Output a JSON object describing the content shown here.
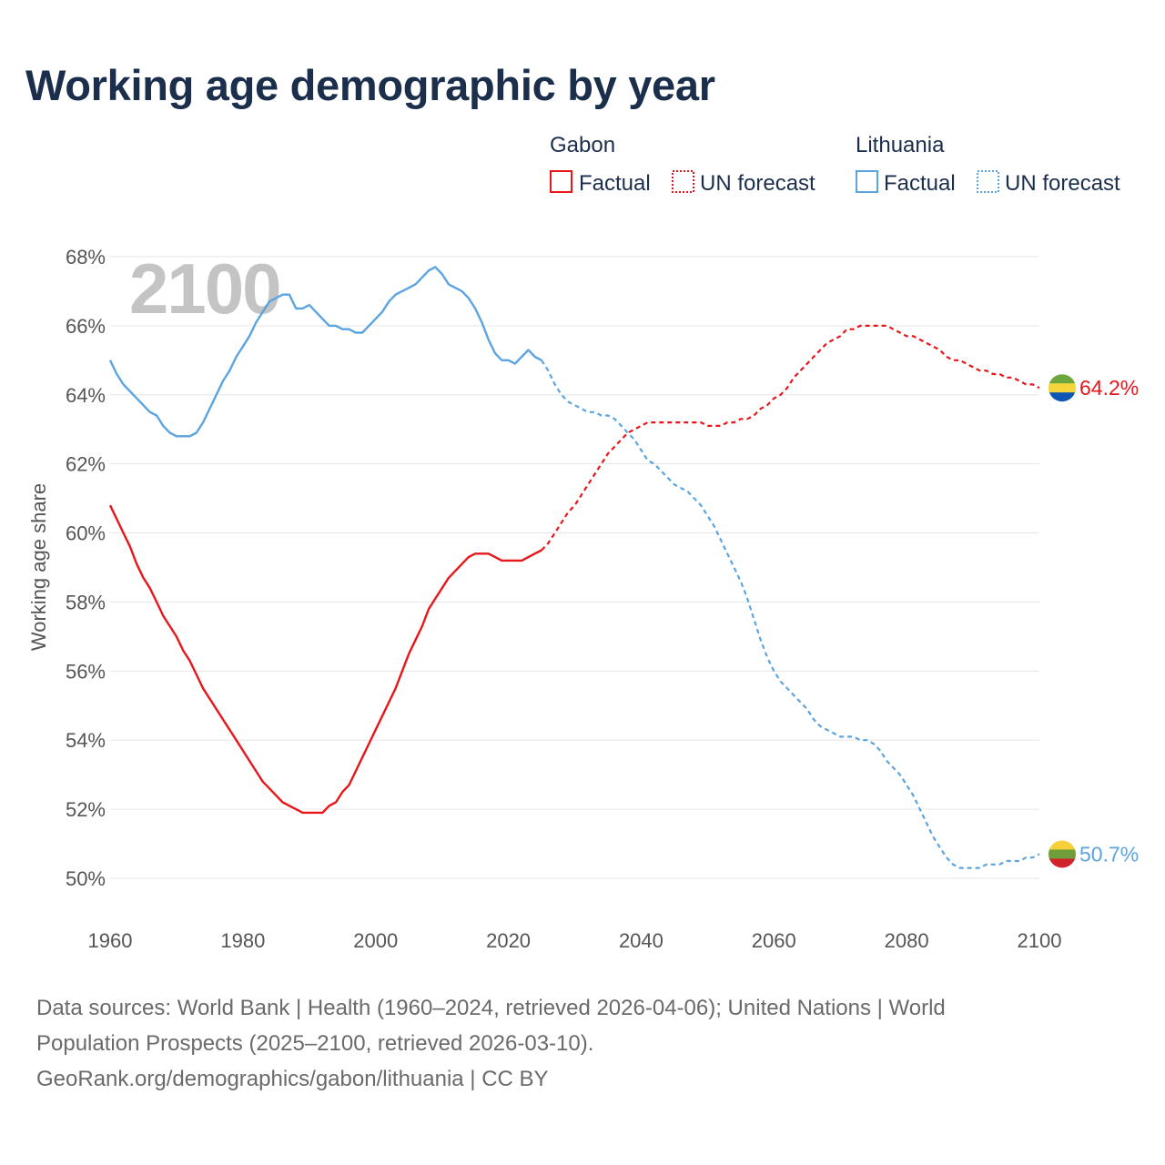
{
  "title": "Working age demographic by year",
  "colors": {
    "gabon": "#e8161b",
    "lithuania": "#5ba4e0",
    "title": "#1b2e4b",
    "grid": "#e6e6e6",
    "axis_text": "#555555",
    "year_watermark": "#c4c4c4"
  },
  "legend": {
    "groups": [
      {
        "country": "Gabon",
        "factual_label": "Factual",
        "forecast_label": "UN forecast"
      },
      {
        "country": "Lithuania",
        "factual_label": "Factual",
        "forecast_label": "UN forecast"
      }
    ]
  },
  "chart_data": {
    "type": "line",
    "title": "Working age demographic by year",
    "xlabel": "",
    "ylabel": "Working age share",
    "year_watermark": "2100",
    "xlim": [
      1960,
      2100
    ],
    "ylim": [
      50,
      68
    ],
    "x_ticks": [
      1960,
      1980,
      2000,
      2020,
      2040,
      2060,
      2080,
      2100
    ],
    "x_tick_labels": [
      "1960",
      "1980",
      "2000",
      "2020",
      "2040",
      "2060",
      "2080",
      "2100"
    ],
    "y_ticks": [
      50,
      52,
      54,
      56,
      58,
      60,
      62,
      64,
      66,
      68
    ],
    "y_tick_labels": [
      "50%",
      "52%",
      "54%",
      "56%",
      "58%",
      "60%",
      "62%",
      "64%",
      "66%",
      "68%"
    ],
    "factual_end_year": 2025,
    "series": [
      {
        "name": "Gabon",
        "color": "#e8161b",
        "end_label": "64.2%",
        "points": [
          [
            1960,
            60.8
          ],
          [
            1961,
            60.4
          ],
          [
            1962,
            60.0
          ],
          [
            1963,
            59.6
          ],
          [
            1964,
            59.1
          ],
          [
            1965,
            58.7
          ],
          [
            1966,
            58.4
          ],
          [
            1967,
            58.0
          ],
          [
            1968,
            57.6
          ],
          [
            1969,
            57.3
          ],
          [
            1970,
            57.0
          ],
          [
            1971,
            56.6
          ],
          [
            1972,
            56.3
          ],
          [
            1973,
            55.9
          ],
          [
            1974,
            55.5
          ],
          [
            1975,
            55.2
          ],
          [
            1976,
            54.9
          ],
          [
            1977,
            54.6
          ],
          [
            1978,
            54.3
          ],
          [
            1979,
            54.0
          ],
          [
            1980,
            53.7
          ],
          [
            1981,
            53.4
          ],
          [
            1982,
            53.1
          ],
          [
            1983,
            52.8
          ],
          [
            1984,
            52.6
          ],
          [
            1985,
            52.4
          ],
          [
            1986,
            52.2
          ],
          [
            1987,
            52.1
          ],
          [
            1988,
            52.0
          ],
          [
            1989,
            51.9
          ],
          [
            1990,
            51.9
          ],
          [
            1991,
            51.9
          ],
          [
            1992,
            51.9
          ],
          [
            1993,
            52.1
          ],
          [
            1994,
            52.2
          ],
          [
            1995,
            52.5
          ],
          [
            1996,
            52.7
          ],
          [
            1997,
            53.1
          ],
          [
            1998,
            53.5
          ],
          [
            1999,
            53.9
          ],
          [
            2000,
            54.3
          ],
          [
            2001,
            54.7
          ],
          [
            2002,
            55.1
          ],
          [
            2003,
            55.5
          ],
          [
            2004,
            56.0
          ],
          [
            2005,
            56.5
          ],
          [
            2006,
            56.9
          ],
          [
            2007,
            57.3
          ],
          [
            2008,
            57.8
          ],
          [
            2009,
            58.1
          ],
          [
            2010,
            58.4
          ],
          [
            2011,
            58.7
          ],
          [
            2012,
            58.9
          ],
          [
            2013,
            59.1
          ],
          [
            2014,
            59.3
          ],
          [
            2015,
            59.4
          ],
          [
            2016,
            59.4
          ],
          [
            2017,
            59.4
          ],
          [
            2018,
            59.3
          ],
          [
            2019,
            59.2
          ],
          [
            2020,
            59.2
          ],
          [
            2021,
            59.2
          ],
          [
            2022,
            59.2
          ],
          [
            2023,
            59.3
          ],
          [
            2024,
            59.4
          ],
          [
            2025,
            59.5
          ],
          [
            2026,
            59.7
          ],
          [
            2027,
            60.0
          ],
          [
            2028,
            60.3
          ],
          [
            2029,
            60.6
          ],
          [
            2030,
            60.8
          ],
          [
            2031,
            61.1
          ],
          [
            2032,
            61.4
          ],
          [
            2033,
            61.7
          ],
          [
            2034,
            62.0
          ],
          [
            2035,
            62.3
          ],
          [
            2036,
            62.5
          ],
          [
            2037,
            62.7
          ],
          [
            2038,
            62.9
          ],
          [
            2039,
            63.0
          ],
          [
            2040,
            63.1
          ],
          [
            2041,
            63.2
          ],
          [
            2042,
            63.2
          ],
          [
            2043,
            63.2
          ],
          [
            2044,
            63.2
          ],
          [
            2045,
            63.2
          ],
          [
            2046,
            63.2
          ],
          [
            2047,
            63.2
          ],
          [
            2048,
            63.2
          ],
          [
            2049,
            63.2
          ],
          [
            2050,
            63.1
          ],
          [
            2051,
            63.1
          ],
          [
            2052,
            63.1
          ],
          [
            2053,
            63.2
          ],
          [
            2054,
            63.2
          ],
          [
            2055,
            63.3
          ],
          [
            2056,
            63.3
          ],
          [
            2057,
            63.4
          ],
          [
            2058,
            63.6
          ],
          [
            2059,
            63.7
          ],
          [
            2060,
            63.9
          ],
          [
            2061,
            64.0
          ],
          [
            2062,
            64.2
          ],
          [
            2063,
            64.5
          ],
          [
            2064,
            64.7
          ],
          [
            2065,
            64.9
          ],
          [
            2066,
            65.1
          ],
          [
            2067,
            65.3
          ],
          [
            2068,
            65.5
          ],
          [
            2069,
            65.6
          ],
          [
            2070,
            65.7
          ],
          [
            2071,
            65.9
          ],
          [
            2072,
            65.9
          ],
          [
            2073,
            66.0
          ],
          [
            2074,
            66.0
          ],
          [
            2075,
            66.0
          ],
          [
            2076,
            66.0
          ],
          [
            2077,
            66.0
          ],
          [
            2078,
            65.9
          ],
          [
            2079,
            65.8
          ],
          [
            2080,
            65.7
          ],
          [
            2081,
            65.7
          ],
          [
            2082,
            65.6
          ],
          [
            2083,
            65.5
          ],
          [
            2084,
            65.4
          ],
          [
            2085,
            65.3
          ],
          [
            2086,
            65.1
          ],
          [
            2087,
            65.0
          ],
          [
            2088,
            65.0
          ],
          [
            2089,
            64.9
          ],
          [
            2090,
            64.8
          ],
          [
            2091,
            64.7
          ],
          [
            2092,
            64.7
          ],
          [
            2093,
            64.6
          ],
          [
            2094,
            64.6
          ],
          [
            2095,
            64.5
          ],
          [
            2096,
            64.5
          ],
          [
            2097,
            64.4
          ],
          [
            2098,
            64.3
          ],
          [
            2099,
            64.3
          ],
          [
            2100,
            64.2
          ]
        ]
      },
      {
        "name": "Lithuania",
        "color": "#5ba4e0",
        "end_label": "50.7%",
        "points": [
          [
            1960,
            65.0
          ],
          [
            1961,
            64.6
          ],
          [
            1962,
            64.3
          ],
          [
            1963,
            64.1
          ],
          [
            1964,
            63.9
          ],
          [
            1965,
            63.7
          ],
          [
            1966,
            63.5
          ],
          [
            1967,
            63.4
          ],
          [
            1968,
            63.1
          ],
          [
            1969,
            62.9
          ],
          [
            1970,
            62.8
          ],
          [
            1971,
            62.8
          ],
          [
            1972,
            62.8
          ],
          [
            1973,
            62.9
          ],
          [
            1974,
            63.2
          ],
          [
            1975,
            63.6
          ],
          [
            1976,
            64.0
          ],
          [
            1977,
            64.4
          ],
          [
            1978,
            64.7
          ],
          [
            1979,
            65.1
          ],
          [
            1980,
            65.4
          ],
          [
            1981,
            65.7
          ],
          [
            1982,
            66.1
          ],
          [
            1983,
            66.4
          ],
          [
            1984,
            66.7
          ],
          [
            1985,
            66.8
          ],
          [
            1986,
            66.9
          ],
          [
            1987,
            66.9
          ],
          [
            1988,
            66.5
          ],
          [
            1989,
            66.5
          ],
          [
            1990,
            66.6
          ],
          [
            1991,
            66.4
          ],
          [
            1992,
            66.2
          ],
          [
            1993,
            66.0
          ],
          [
            1994,
            66.0
          ],
          [
            1995,
            65.9
          ],
          [
            1996,
            65.9
          ],
          [
            1997,
            65.8
          ],
          [
            1998,
            65.8
          ],
          [
            1999,
            66.0
          ],
          [
            2000,
            66.2
          ],
          [
            2001,
            66.4
          ],
          [
            2002,
            66.7
          ],
          [
            2003,
            66.9
          ],
          [
            2004,
            67.0
          ],
          [
            2005,
            67.1
          ],
          [
            2006,
            67.2
          ],
          [
            2007,
            67.4
          ],
          [
            2008,
            67.6
          ],
          [
            2009,
            67.7
          ],
          [
            2010,
            67.5
          ],
          [
            2011,
            67.2
          ],
          [
            2012,
            67.1
          ],
          [
            2013,
            67.0
          ],
          [
            2014,
            66.8
          ],
          [
            2015,
            66.5
          ],
          [
            2016,
            66.1
          ],
          [
            2017,
            65.6
          ],
          [
            2018,
            65.2
          ],
          [
            2019,
            65.0
          ],
          [
            2020,
            65.0
          ],
          [
            2021,
            64.9
          ],
          [
            2022,
            65.1
          ],
          [
            2023,
            65.3
          ],
          [
            2024,
            65.1
          ],
          [
            2025,
            65.0
          ],
          [
            2026,
            64.7
          ],
          [
            2027,
            64.3
          ],
          [
            2028,
            64.0
          ],
          [
            2029,
            63.8
          ],
          [
            2030,
            63.7
          ],
          [
            2031,
            63.6
          ],
          [
            2032,
            63.5
          ],
          [
            2033,
            63.5
          ],
          [
            2034,
            63.4
          ],
          [
            2035,
            63.4
          ],
          [
            2036,
            63.3
          ],
          [
            2037,
            63.1
          ],
          [
            2038,
            62.9
          ],
          [
            2039,
            62.7
          ],
          [
            2040,
            62.4
          ],
          [
            2041,
            62.1
          ],
          [
            2042,
            62.0
          ],
          [
            2043,
            61.8
          ],
          [
            2044,
            61.6
          ],
          [
            2045,
            61.4
          ],
          [
            2046,
            61.3
          ],
          [
            2047,
            61.2
          ],
          [
            2048,
            61.0
          ],
          [
            2049,
            60.8
          ],
          [
            2050,
            60.5
          ],
          [
            2051,
            60.2
          ],
          [
            2052,
            59.8
          ],
          [
            2053,
            59.4
          ],
          [
            2054,
            59.0
          ],
          [
            2055,
            58.6
          ],
          [
            2056,
            58.1
          ],
          [
            2057,
            57.5
          ],
          [
            2058,
            56.9
          ],
          [
            2059,
            56.4
          ],
          [
            2060,
            56.0
          ],
          [
            2061,
            55.7
          ],
          [
            2062,
            55.5
          ],
          [
            2063,
            55.3
          ],
          [
            2064,
            55.1
          ],
          [
            2065,
            54.9
          ],
          [
            2066,
            54.6
          ],
          [
            2067,
            54.4
          ],
          [
            2068,
            54.3
          ],
          [
            2069,
            54.2
          ],
          [
            2070,
            54.1
          ],
          [
            2071,
            54.1
          ],
          [
            2072,
            54.1
          ],
          [
            2073,
            54.0
          ],
          [
            2074,
            54.0
          ],
          [
            2075,
            53.9
          ],
          [
            2076,
            53.7
          ],
          [
            2077,
            53.4
          ],
          [
            2078,
            53.2
          ],
          [
            2079,
            53.0
          ],
          [
            2080,
            52.7
          ],
          [
            2081,
            52.4
          ],
          [
            2082,
            52.0
          ],
          [
            2083,
            51.6
          ],
          [
            2084,
            51.2
          ],
          [
            2085,
            50.9
          ],
          [
            2086,
            50.6
          ],
          [
            2087,
            50.4
          ],
          [
            2088,
            50.3
          ],
          [
            2089,
            50.3
          ],
          [
            2090,
            50.3
          ],
          [
            2091,
            50.3
          ],
          [
            2092,
            50.4
          ],
          [
            2093,
            50.4
          ],
          [
            2094,
            50.4
          ],
          [
            2095,
            50.5
          ],
          [
            2096,
            50.5
          ],
          [
            2097,
            50.5
          ],
          [
            2098,
            50.6
          ],
          [
            2099,
            50.6
          ],
          [
            2100,
            50.7
          ]
        ]
      }
    ]
  },
  "footer": {
    "line1": "Data sources: World Bank | Health (1960–2024, retrieved 2026-04-06); United Nations | World",
    "line2": "Population Prospects (2025–2100, retrieved 2026-03-10).",
    "line3": "GeoRank.org/demographics/gabon/lithuania | CC BY"
  }
}
